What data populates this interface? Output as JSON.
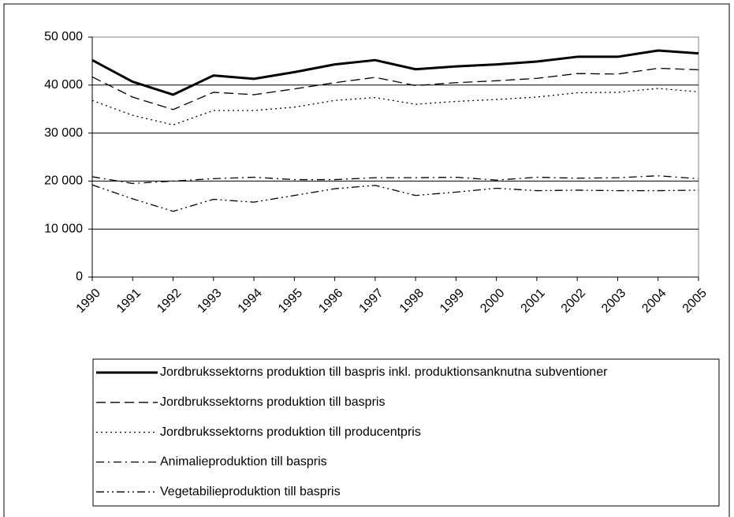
{
  "chart_data": {
    "type": "line",
    "categories": [
      "1990",
      "1991",
      "1992",
      "1993",
      "1994",
      "1995",
      "1996",
      "1997",
      "1998",
      "1999",
      "2000",
      "2001",
      "2002",
      "2003",
      "2004",
      "2005"
    ],
    "ylim": [
      0,
      50000
    ],
    "yticks": [
      0,
      {
        "value": 10000,
        "label": "10 000"
      },
      {
        "value": 20000,
        "label": "20 000"
      },
      {
        "value": 30000,
        "label": "30 000"
      },
      {
        "value": 40000,
        "label": "40 000"
      },
      {
        "value": 50000,
        "label": "50 000"
      }
    ],
    "grid": true,
    "legend": "bottom",
    "series": [
      {
        "name": "Jordbrukssektorns produktion till baspris inkl. produktionsanknutna subventioner",
        "color": "#000000",
        "style": "solid-bold",
        "values": [
          45200,
          40700,
          38000,
          42000,
          41300,
          42700,
          44300,
          45200,
          43300,
          43900,
          44300,
          44900,
          45900,
          45900,
          47200,
          46600
        ]
      },
      {
        "name": "Jordbrukssektorns produktion till baspris",
        "color": "#000000",
        "style": "dashed",
        "values": [
          41700,
          37500,
          34900,
          38500,
          38000,
          39200,
          40500,
          41600,
          39900,
          40500,
          40900,
          41400,
          42400,
          42300,
          43500,
          43200
        ]
      },
      {
        "name": "Jordbrukssektorns produktion till producentpris",
        "color": "#000000",
        "style": "dotted",
        "values": [
          36800,
          33700,
          31700,
          34700,
          34700,
          35400,
          36800,
          37400,
          36000,
          36600,
          37000,
          37500,
          38400,
          38500,
          39300,
          38600
        ]
      },
      {
        "name": "Animalieproduktion till baspris",
        "color": "#000000",
        "style": "dashdot",
        "values": [
          20900,
          19500,
          20000,
          20500,
          20800,
          20300,
          20300,
          20700,
          20700,
          20800,
          20200,
          20800,
          20600,
          20700,
          21100,
          20500
        ]
      },
      {
        "name": "Vegetabilieproduktion till baspris",
        "color": "#000000",
        "style": "dashdotdot",
        "values": [
          19200,
          16300,
          13700,
          16200,
          15600,
          17000,
          18400,
          19100,
          17000,
          17700,
          18500,
          18000,
          18100,
          18000,
          18000,
          18100
        ]
      }
    ]
  }
}
